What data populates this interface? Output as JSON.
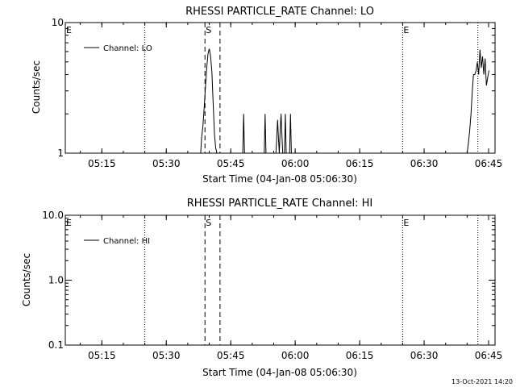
{
  "footer": {
    "timestamp": "13-Oct-2021 14:20"
  },
  "chart_data": [
    {
      "type": "line",
      "title": "RHESSI PARTICLE_RATE Channel: LO",
      "xlabel": "Start Time (04-Jan-08 05:06:30)",
      "ylabel": "Counts/sec",
      "yscale": "log",
      "xlim_minutes_after_0500": [
        6.5,
        106.5
      ],
      "ylim": [
        1,
        10
      ],
      "xticks": [
        "05:15",
        "05:30",
        "05:45",
        "06:00",
        "06:15",
        "06:30",
        "06:45"
      ],
      "yticks": [
        "1",
        "10"
      ],
      "legend": {
        "label": "Channel: LO",
        "position": "top-left"
      },
      "markers": [
        {
          "label": "E",
          "time": "05:06:30"
        },
        {
          "label": "S",
          "time": "05:39:00"
        },
        {
          "label": "E",
          "time": "06:25:00"
        }
      ],
      "dotted_lines": [
        "05:25:00",
        "06:25:00",
        "06:42:30"
      ],
      "dashed_lines": [
        "05:39:00",
        "05:42:30"
      ],
      "series": [
        {
          "x": [
            38.0,
            38.2,
            38.5,
            38.8,
            39.1,
            39.4,
            39.7,
            40.0,
            40.3,
            40.6,
            40.9,
            41.2,
            41.5,
            41.8,
            47.8,
            48.0,
            48.2,
            52.8,
            53.0,
            53.2,
            55.3,
            55.5,
            55.7,
            55.9,
            56.1,
            56.3,
            56.5,
            56.7,
            56.9,
            57.1,
            57.5,
            57.7,
            57.9,
            58.7,
            58.9,
            59.1,
            62.0,
            100.0,
            100.3,
            100.6,
            100.9,
            101.2,
            101.5,
            101.8,
            102.1,
            102.4,
            102.7,
            103.0,
            103.3,
            103.6,
            103.9,
            104.2,
            104.5,
            104.8,
            105.1
          ],
          "y": [
            1,
            1.3,
            1.6,
            2.2,
            3.2,
            4.5,
            5.8,
            6.3,
            5.5,
            4.2,
            2.4,
            1.4,
            1.1,
            1,
            1,
            2,
            1,
            1,
            2,
            1,
            1,
            1,
            1.3,
            1.8,
            1.3,
            1.0,
            1.5,
            2.0,
            1.4,
            1,
            1,
            2,
            1,
            1,
            2,
            1,
            1,
            1,
            1.2,
            1.5,
            2.0,
            3.0,
            4.0,
            4.0,
            4.3,
            5.0,
            4.0,
            6.2,
            4.5,
            5.5,
            4.0,
            5.3,
            3.3,
            3.8,
            4.3
          ]
        }
      ]
    },
    {
      "type": "line",
      "title": "RHESSI PARTICLE_RATE Channel: HI",
      "xlabel": "Start Time (04-Jan-08 05:06:30)",
      "ylabel": "Counts/sec",
      "yscale": "log",
      "xlim_minutes_after_0500": [
        6.5,
        106.5
      ],
      "ylim": [
        0.1,
        10
      ],
      "xticks": [
        "05:15",
        "05:30",
        "05:45",
        "06:00",
        "06:15",
        "06:30",
        "06:45"
      ],
      "yticks": [
        "0.1",
        "1.0",
        "10.0"
      ],
      "legend": {
        "label": "Channel: HI",
        "position": "top-left"
      },
      "markers": [
        {
          "label": "E",
          "time": "05:06:30"
        },
        {
          "label": "S",
          "time": "05:39:00"
        },
        {
          "label": "E",
          "time": "06:25:00"
        }
      ],
      "dotted_lines": [
        "05:25:00",
        "06:25:00",
        "06:42:30"
      ],
      "dashed_lines": [
        "05:39:00",
        "05:42:30"
      ],
      "series": []
    }
  ]
}
